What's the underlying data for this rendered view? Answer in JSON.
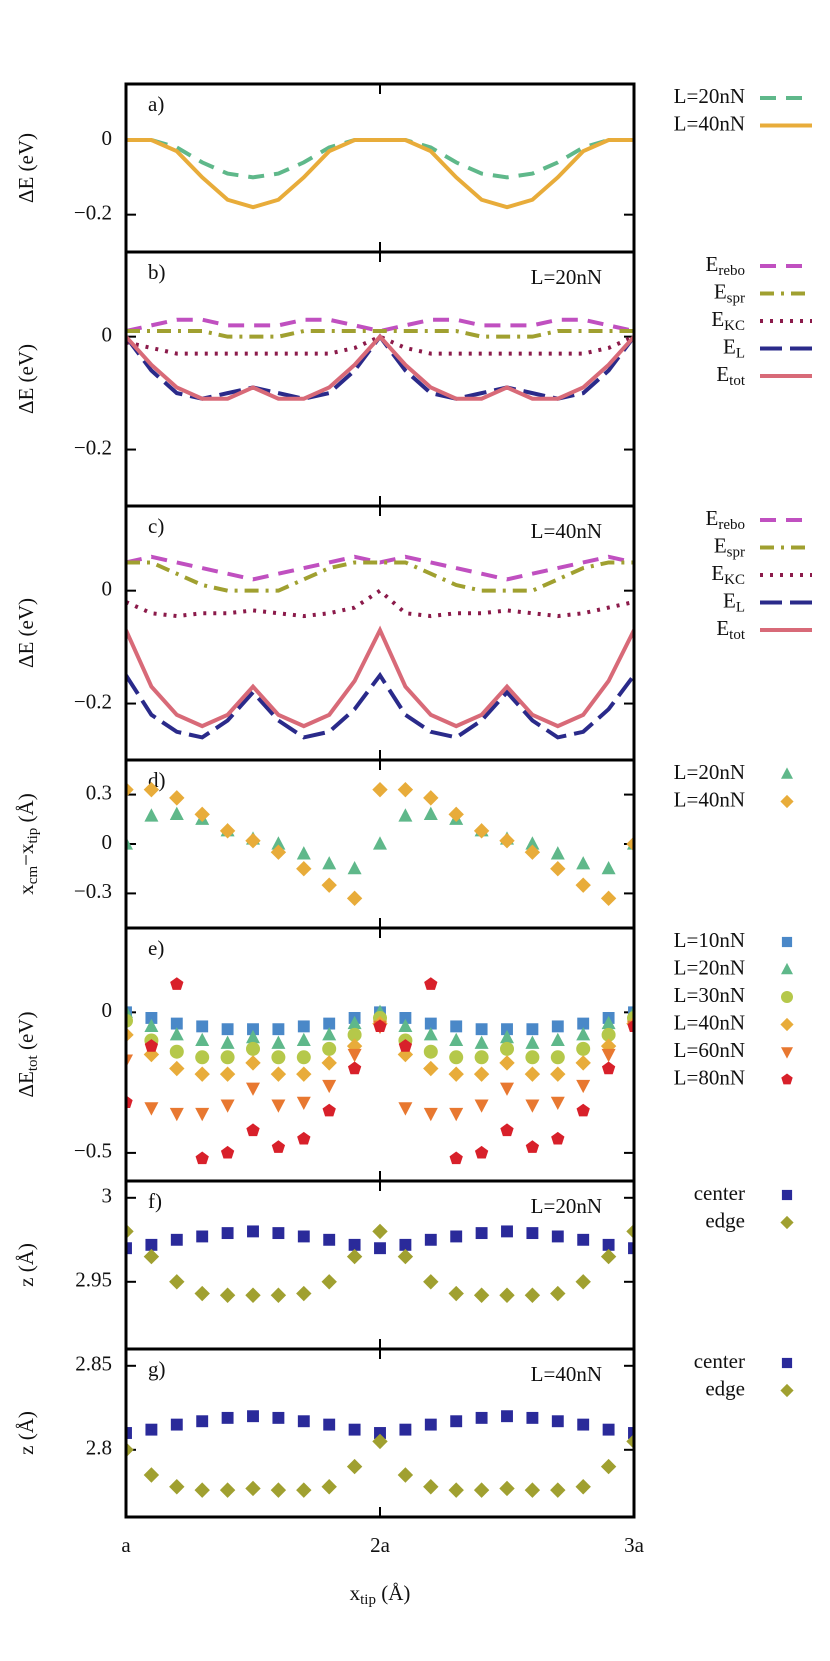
{
  "chart_data": [
    {
      "type": "line",
      "panel_label": "a)",
      "ylabel": [
        "ΔE (eV)"
      ],
      "x": [
        1,
        1.1,
        1.2,
        1.3,
        1.4,
        1.5,
        1.6,
        1.7,
        1.8,
        1.9,
        2,
        2.1,
        2.2,
        2.3,
        2.4,
        2.5,
        2.6,
        2.7,
        2.8,
        2.9,
        3
      ],
      "xlim": [
        1,
        3
      ],
      "xticks": [
        1,
        2,
        3
      ],
      "ylim": [
        -0.3,
        0.15
      ],
      "yticks": [
        {
          "value": -0.2,
          "label": "−0.2"
        },
        0
      ],
      "series": [
        {
          "name": "L=20nN",
          "color": "#5fb88a",
          "style": "dashed",
          "values": [
            0,
            0,
            -0.02,
            -0.06,
            -0.09,
            -0.1,
            -0.09,
            -0.06,
            -0.02,
            0,
            0,
            0,
            -0.02,
            -0.06,
            -0.09,
            -0.1,
            -0.09,
            -0.06,
            -0.02,
            0,
            0
          ]
        },
        {
          "name": "L=40nN",
          "color": "#e8ac3a",
          "style": "solid",
          "values": [
            0,
            0,
            -0.03,
            -0.1,
            -0.16,
            -0.18,
            -0.16,
            -0.1,
            -0.03,
            0,
            0,
            0,
            -0.03,
            -0.1,
            -0.16,
            -0.18,
            -0.16,
            -0.1,
            -0.03,
            0,
            0
          ]
        }
      ]
    },
    {
      "type": "line",
      "panel_label": "b)",
      "annotation": "L=20nN",
      "ylabel": [
        "ΔE (eV)"
      ],
      "x": [
        1,
        1.1,
        1.2,
        1.3,
        1.4,
        1.5,
        1.6,
        1.7,
        1.8,
        1.9,
        2,
        2.1,
        2.2,
        2.3,
        2.4,
        2.5,
        2.6,
        2.7,
        2.8,
        2.9,
        3
      ],
      "xlim": [
        1,
        3
      ],
      "xticks": [
        1,
        2,
        3
      ],
      "ylim": [
        -0.3,
        0.15
      ],
      "yticks": [
        {
          "value": -0.2,
          "label": "−0.2"
        },
        0
      ],
      "series": [
        {
          "name": [
            "E",
            "rebo"
          ],
          "color": "#c050c0",
          "style": "dashed",
          "values": [
            0.01,
            0.02,
            0.03,
            0.03,
            0.02,
            0.02,
            0.02,
            0.03,
            0.03,
            0.02,
            0.01,
            0.02,
            0.03,
            0.03,
            0.02,
            0.02,
            0.02,
            0.03,
            0.03,
            0.02,
            0.01
          ]
        },
        {
          "name": [
            "E",
            "spr"
          ],
          "color": "#a0a030",
          "style": "dashdot",
          "values": [
            0.01,
            0.01,
            0.01,
            0.01,
            0,
            0,
            0,
            0.01,
            0.01,
            0.01,
            0.01,
            0.01,
            0.01,
            0.01,
            0,
            0,
            0,
            0.01,
            0.01,
            0.01,
            0.01
          ]
        },
        {
          "name": [
            "E",
            "KC"
          ],
          "color": "#8b1a4a",
          "style": "dotted",
          "values": [
            -0.01,
            -0.02,
            -0.03,
            -0.03,
            -0.03,
            -0.03,
            -0.03,
            -0.03,
            -0.03,
            -0.02,
            0,
            -0.02,
            -0.03,
            -0.03,
            -0.03,
            -0.03,
            -0.03,
            -0.03,
            -0.03,
            -0.02,
            0
          ]
        },
        {
          "name": [
            "E",
            "L"
          ],
          "color": "#2a2a8a",
          "style": "longdash",
          "values": [
            0,
            -0.06,
            -0.1,
            -0.11,
            -0.1,
            -0.09,
            -0.1,
            -0.11,
            -0.1,
            -0.06,
            0,
            -0.06,
            -0.1,
            -0.11,
            -0.1,
            -0.09,
            -0.1,
            -0.11,
            -0.1,
            -0.06,
            0
          ]
        },
        {
          "name": [
            "E",
            "tot"
          ],
          "color": "#d86a78",
          "style": "solid",
          "values": [
            0,
            -0.05,
            -0.09,
            -0.11,
            -0.11,
            -0.09,
            -0.11,
            -0.11,
            -0.09,
            -0.05,
            0,
            -0.05,
            -0.09,
            -0.11,
            -0.11,
            -0.09,
            -0.11,
            -0.11,
            -0.09,
            -0.05,
            0
          ]
        }
      ]
    },
    {
      "type": "line",
      "panel_label": "c)",
      "annotation": "L=40nN",
      "ylabel": [
        "ΔE (eV)"
      ],
      "x": [
        1,
        1.1,
        1.2,
        1.3,
        1.4,
        1.5,
        1.6,
        1.7,
        1.8,
        1.9,
        2,
        2.1,
        2.2,
        2.3,
        2.4,
        2.5,
        2.6,
        2.7,
        2.8,
        2.9,
        3
      ],
      "xlim": [
        1,
        3
      ],
      "xticks": [
        1,
        2,
        3
      ],
      "ylim": [
        -0.3,
        0.15
      ],
      "yticks": [
        {
          "value": -0.2,
          "label": "−0.2"
        },
        0
      ],
      "series": [
        {
          "name": [
            "E",
            "rebo"
          ],
          "color": "#c050c0",
          "style": "dashed",
          "values": [
            0.05,
            0.06,
            0.05,
            0.04,
            0.03,
            0.02,
            0.03,
            0.04,
            0.05,
            0.06,
            0.05,
            0.06,
            0.05,
            0.04,
            0.03,
            0.02,
            0.03,
            0.04,
            0.05,
            0.06,
            0.05
          ]
        },
        {
          "name": [
            "E",
            "spr"
          ],
          "color": "#a0a030",
          "style": "dashdot",
          "values": [
            0.05,
            0.05,
            0.03,
            0.01,
            0,
            0,
            0,
            0.02,
            0.04,
            0.05,
            0.05,
            0.05,
            0.03,
            0.01,
            0,
            0,
            0,
            0.02,
            0.04,
            0.05,
            0.05
          ]
        },
        {
          "name": [
            "E",
            "KC"
          ],
          "color": "#8b1a4a",
          "style": "dotted",
          "values": [
            -0.02,
            -0.04,
            -0.045,
            -0.04,
            -0.04,
            -0.035,
            -0.04,
            -0.045,
            -0.04,
            -0.03,
            0,
            -0.04,
            -0.045,
            -0.04,
            -0.04,
            -0.035,
            -0.04,
            -0.045,
            -0.04,
            -0.03,
            -0.02
          ]
        },
        {
          "name": [
            "E",
            "L"
          ],
          "color": "#2a2a8a",
          "style": "longdash",
          "values": [
            -0.15,
            -0.22,
            -0.25,
            -0.26,
            -0.23,
            -0.18,
            -0.23,
            -0.26,
            -0.25,
            -0.21,
            -0.15,
            -0.22,
            -0.25,
            -0.26,
            -0.23,
            -0.18,
            -0.23,
            -0.26,
            -0.25,
            -0.21,
            -0.15
          ]
        },
        {
          "name": [
            "E",
            "tot"
          ],
          "color": "#d86a78",
          "style": "solid",
          "values": [
            -0.07,
            -0.17,
            -0.22,
            -0.24,
            -0.22,
            -0.17,
            -0.22,
            -0.24,
            -0.22,
            -0.16,
            -0.07,
            -0.17,
            -0.22,
            -0.24,
            -0.22,
            -0.17,
            -0.22,
            -0.24,
            -0.22,
            -0.16,
            -0.07
          ]
        }
      ]
    },
    {
      "type": "scatter",
      "panel_label": "d)",
      "ylabel": [
        "x",
        "cm",
        "−x",
        "tip",
        " (Å)"
      ],
      "x": [
        1,
        1.1,
        1.2,
        1.3,
        1.4,
        1.5,
        1.6,
        1.7,
        1.8,
        1.9,
        2,
        2.1,
        2.2,
        2.3,
        2.4,
        2.5,
        2.6,
        2.7,
        2.8,
        2.9,
        3
      ],
      "xlim": [
        1,
        3
      ],
      "xticks": [
        1,
        2,
        3
      ],
      "ylim": [
        -0.51,
        0.51
      ],
      "yticks": [
        {
          "value": -0.3,
          "label": "−0.3"
        },
        0,
        0.3
      ],
      "series": [
        {
          "name": "L=20nN",
          "color": "#5fb88a",
          "marker": "triangle",
          "values": [
            0,
            0.17,
            0.18,
            0.15,
            0.08,
            0.03,
            0,
            -0.06,
            -0.12,
            -0.15,
            0,
            0.17,
            0.18,
            0.15,
            0.08,
            0.03,
            0,
            -0.06,
            -0.12,
            -0.15,
            0
          ]
        },
        {
          "name": "L=40nN",
          "color": "#e8ac3a",
          "marker": "diamond",
          "values": [
            0.33,
            0.33,
            0.28,
            0.18,
            0.08,
            0.02,
            -0.05,
            -0.15,
            -0.25,
            -0.33,
            0.33,
            0.33,
            0.28,
            0.18,
            0.08,
            0.02,
            -0.05,
            -0.15,
            -0.25,
            -0.33,
            0
          ]
        }
      ]
    },
    {
      "type": "scatter",
      "panel_label": "e)",
      "ylabel": [
        "ΔE",
        "tot",
        " (eV)"
      ],
      "x": [
        1,
        1.1,
        1.2,
        1.3,
        1.4,
        1.5,
        1.6,
        1.7,
        1.8,
        1.9,
        2,
        2.1,
        2.2,
        2.3,
        2.4,
        2.5,
        2.6,
        2.7,
        2.8,
        2.9,
        3
      ],
      "xlim": [
        1,
        3
      ],
      "xticks": [
        1,
        2,
        3
      ],
      "ylim": [
        -0.6,
        0.3
      ],
      "yticks": [
        {
          "value": -0.5,
          "label": "−0.5"
        },
        0
      ],
      "series": [
        {
          "name": "L=10nN",
          "color": "#4a88c8",
          "marker": "square",
          "values": [
            0,
            -0.02,
            -0.04,
            -0.05,
            -0.06,
            -0.06,
            -0.06,
            -0.05,
            -0.04,
            -0.02,
            0,
            -0.02,
            -0.04,
            -0.05,
            -0.06,
            -0.06,
            -0.06,
            -0.05,
            -0.04,
            -0.02,
            0
          ]
        },
        {
          "name": "L=20nN",
          "color": "#5fb88a",
          "marker": "triangle",
          "values": [
            0,
            -0.05,
            -0.08,
            -0.1,
            -0.11,
            -0.09,
            -0.11,
            -0.1,
            -0.08,
            -0.04,
            0,
            -0.05,
            -0.08,
            -0.1,
            -0.11,
            -0.09,
            -0.11,
            -0.1,
            -0.08,
            -0.04,
            0
          ]
        },
        {
          "name": "L=30nN",
          "color": "#b5c84a",
          "marker": "circle",
          "values": [
            -0.03,
            -0.1,
            -0.14,
            -0.16,
            -0.16,
            -0.13,
            -0.16,
            -0.16,
            -0.13,
            -0.08,
            -0.02,
            -0.1,
            -0.14,
            -0.16,
            -0.16,
            -0.13,
            -0.16,
            -0.16,
            -0.13,
            -0.08,
            -0.02
          ]
        },
        {
          "name": "L=40nN",
          "color": "#e8ac3a",
          "marker": "diamond",
          "values": [
            -0.08,
            -0.15,
            -0.2,
            -0.22,
            -0.22,
            -0.18,
            -0.22,
            -0.22,
            -0.18,
            -0.12,
            -0.04,
            -0.15,
            -0.2,
            -0.22,
            -0.22,
            -0.18,
            -0.22,
            -0.22,
            -0.18,
            -0.12,
            -0.04
          ]
        },
        {
          "name": "L=60nN",
          "color": "#e87830",
          "marker": "triangle-down",
          "values": [
            -0.17,
            -0.34,
            -0.36,
            -0.36,
            -0.33,
            -0.27,
            -0.33,
            -0.32,
            -0.26,
            -0.15,
            -0.05,
            -0.34,
            -0.36,
            -0.36,
            -0.33,
            -0.27,
            -0.33,
            -0.32,
            -0.26,
            -0.15,
            -0.05
          ]
        },
        {
          "name": "L=80nN",
          "color": "#d8202a",
          "marker": "pentagon",
          "values": [
            -0.32,
            -0.12,
            0.1,
            -0.52,
            -0.5,
            -0.42,
            -0.48,
            -0.45,
            -0.35,
            -0.2,
            -0.05,
            -0.12,
            0.1,
            -0.52,
            -0.5,
            -0.42,
            -0.48,
            -0.45,
            -0.35,
            -0.2,
            -0.05
          ]
        }
      ]
    },
    {
      "type": "scatter",
      "panel_label": "f)",
      "annotation": "L=20nN",
      "ylabel": [
        "z (Å)"
      ],
      "x": [
        1,
        1.1,
        1.2,
        1.3,
        1.4,
        1.5,
        1.6,
        1.7,
        1.8,
        1.9,
        2,
        2.1,
        2.2,
        2.3,
        2.4,
        2.5,
        2.6,
        2.7,
        2.8,
        2.9,
        3
      ],
      "xlim": [
        1,
        3
      ],
      "xticks": [
        1,
        2,
        3
      ],
      "ylim": [
        2.91,
        3.01
      ],
      "yticks": [
        2.95,
        3
      ],
      "series": [
        {
          "name": "center",
          "color": "#2a2a9a",
          "marker": "square",
          "values": [
            2.97,
            2.972,
            2.975,
            2.977,
            2.979,
            2.98,
            2.979,
            2.977,
            2.975,
            2.972,
            2.97,
            2.972,
            2.975,
            2.977,
            2.979,
            2.98,
            2.979,
            2.977,
            2.975,
            2.972,
            2.97
          ]
        },
        {
          "name": "edge",
          "color": "#a0a030",
          "marker": "diamond",
          "values": [
            2.98,
            2.965,
            2.95,
            2.943,
            2.942,
            2.942,
            2.942,
            2.943,
            2.95,
            2.965,
            2.98,
            2.965,
            2.95,
            2.943,
            2.942,
            2.942,
            2.942,
            2.943,
            2.95,
            2.965,
            2.98
          ]
        }
      ]
    },
    {
      "type": "scatter",
      "panel_label": "g)",
      "annotation": "L=40nN",
      "ylabel": [
        "z (Å)"
      ],
      "xlabel": [
        "x",
        "tip",
        " (Å)"
      ],
      "x": [
        1,
        1.1,
        1.2,
        1.3,
        1.4,
        1.5,
        1.6,
        1.7,
        1.8,
        1.9,
        2,
        2.1,
        2.2,
        2.3,
        2.4,
        2.5,
        2.6,
        2.7,
        2.8,
        2.9,
        3
      ],
      "xlim": [
        1,
        3
      ],
      "xticks": [
        {
          "value": 1,
          "label": "a"
        },
        {
          "value": 2,
          "label": "2a"
        },
        {
          "value": 3,
          "label": "3a"
        }
      ],
      "ylim": [
        2.76,
        2.86
      ],
      "yticks": [
        2.8,
        2.85
      ],
      "series": [
        {
          "name": "center",
          "color": "#2a2a9a",
          "marker": "square",
          "values": [
            2.81,
            2.812,
            2.815,
            2.817,
            2.819,
            2.82,
            2.819,
            2.817,
            2.815,
            2.812,
            2.81,
            2.812,
            2.815,
            2.817,
            2.819,
            2.82,
            2.819,
            2.817,
            2.815,
            2.812,
            2.81
          ]
        },
        {
          "name": "edge",
          "color": "#a0a030",
          "marker": "diamond",
          "values": [
            2.8,
            2.785,
            2.778,
            2.776,
            2.776,
            2.777,
            2.776,
            2.776,
            2.778,
            2.79,
            2.805,
            2.785,
            2.778,
            2.776,
            2.776,
            2.777,
            2.776,
            2.776,
            2.778,
            2.79,
            2.805
          ]
        }
      ]
    }
  ]
}
